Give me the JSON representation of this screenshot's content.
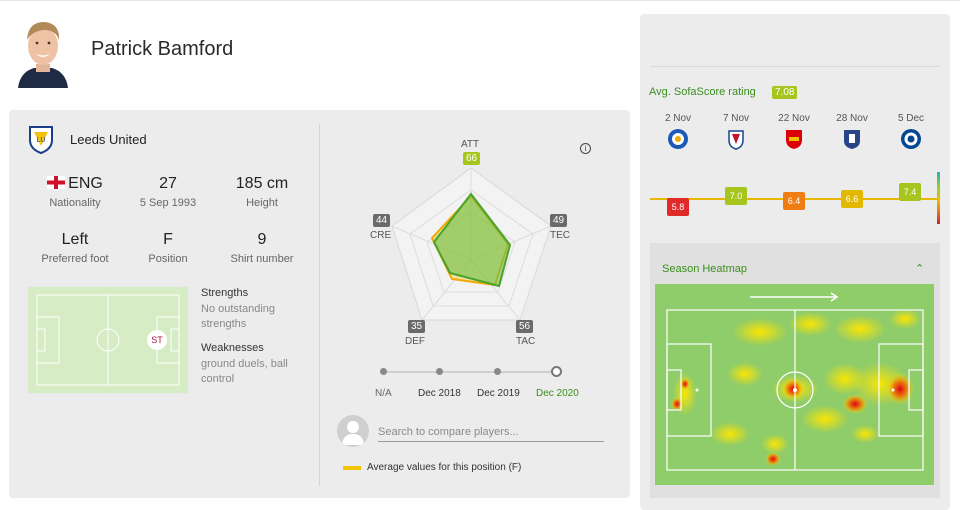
{
  "player": {
    "name": "Patrick Bamford",
    "team": "Leeds United"
  },
  "stats": {
    "nationality": {
      "value": "ENG",
      "label": "Nationality"
    },
    "age": {
      "value": "27",
      "label": "5 Sep 1993"
    },
    "height": {
      "value": "185 cm",
      "label": "Height"
    },
    "foot": {
      "value": "Left",
      "label": "Preferred foot"
    },
    "position": {
      "value": "F",
      "label": "Position"
    },
    "shirt": {
      "value": "9",
      "label": "Shirt number"
    }
  },
  "position_badge": "ST",
  "strengths": {
    "title": "Strengths",
    "text": "No outstanding strengths"
  },
  "weaknesses": {
    "title": "Weaknesses",
    "text": "ground duels, ball control"
  },
  "attributes": {
    "att": {
      "label": "ATT",
      "value": "66"
    },
    "tec": {
      "label": "TEC",
      "value": "49"
    },
    "tac": {
      "label": "TAC",
      "value": "56"
    },
    "def": {
      "label": "DEF",
      "value": "35"
    },
    "cre": {
      "label": "CRE",
      "value": "44"
    }
  },
  "timeline": [
    "N/A",
    "Dec 2018",
    "Dec 2019",
    "Dec 2020"
  ],
  "search": {
    "placeholder": "Search to compare players..."
  },
  "legend": {
    "avg_label": "Average values for this position (F)"
  },
  "ratings": {
    "title": "Avg. SofaScore rating",
    "avg": "7.08",
    "matches": [
      {
        "date": "2 Nov",
        "club": "leicester-crest-icon",
        "rating": "5.8",
        "color": "#e02a2a"
      },
      {
        "date": "7 Nov",
        "club": "crystal-palace-crest-icon",
        "rating": "7.0",
        "color": "#a6c61f"
      },
      {
        "date": "22 Nov",
        "club": "arsenal-crest-icon",
        "rating": "6.4",
        "color": "#ef7d14"
      },
      {
        "date": "28 Nov",
        "club": "everton-crest-icon",
        "rating": "6.6",
        "color": "#e3b800"
      },
      {
        "date": "5 Dec",
        "club": "chelsea-crest-icon",
        "rating": "7.4",
        "color": "#a6c61f"
      }
    ]
  },
  "heatmap": {
    "title": "Season Heatmap"
  },
  "colors": {
    "accent_green": "#3a8f1e",
    "pitch_green": "#8fcc6a",
    "avg_yellow": "#f1c400",
    "radar_fill": "#6bbf4a"
  }
}
